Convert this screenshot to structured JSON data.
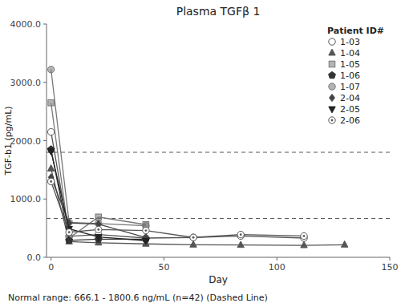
{
  "chart_data": {
    "type": "line",
    "title": "Plasma TGFβ 1",
    "x_label": "Day",
    "y_label": "TGF-b1 (pg/mL)",
    "footnote": "Normal range: 666.1 - 1800.6 ng/mL (n=42) (Dashed Line)",
    "xlim": [
      -2,
      150
    ],
    "ylim": [
      0.0,
      4000.0
    ],
    "xticks": [
      0,
      50,
      100,
      150
    ],
    "yticks": [
      {
        "value": 0.0,
        "label": "0.0"
      },
      {
        "value": 1000.0,
        "label": "1000.0"
      },
      {
        "value": 2000.0,
        "label": "2000.0"
      },
      {
        "value": 3000.0,
        "label": "3000.0"
      },
      {
        "value": 4000.0,
        "label": "4000.0"
      }
    ],
    "reference_lines": [
      666.1,
      1800.6
    ],
    "grid": false,
    "legend": "upper right",
    "legend_title": "Patient ID#",
    "series": [
      {
        "name": "1-03",
        "x": [
          0,
          8,
          21,
          42,
          63,
          84,
          112
        ],
        "values": [
          2150,
          360,
          390,
          330,
          340,
          365,
          330
        ],
        "color": "#555555",
        "marker": "circle-open"
      },
      {
        "name": "1-04",
        "x": [
          0,
          8,
          21,
          42,
          63,
          84,
          112,
          130
        ],
        "values": [
          1520,
          270,
          250,
          230,
          215,
          210,
          205,
          215
        ],
        "color": "#555555",
        "marker": "triangle-up"
      },
      {
        "name": "1-05",
        "x": [
          0,
          8,
          21,
          42
        ],
        "values": [
          2650,
          330,
          690,
          560
        ],
        "color": "#777777",
        "marker": "square"
      },
      {
        "name": "1-06",
        "x": [
          0,
          8,
          21,
          42
        ],
        "values": [
          1850,
          290,
          310,
          310
        ],
        "color": "#333333",
        "marker": "pentagon"
      },
      {
        "name": "1-07",
        "x": [
          0,
          8,
          21,
          42
        ],
        "values": [
          3220,
          600,
          580,
          540
        ],
        "color": "#777777",
        "marker": "circle"
      },
      {
        "name": "2-04",
        "x": [
          0,
          8,
          21,
          42
        ],
        "values": [
          1370,
          590,
          570,
          340
        ],
        "color": "#444444",
        "marker": "diamond"
      },
      {
        "name": "2-05",
        "x": [
          0,
          8,
          21,
          42
        ],
        "values": [
          1820,
          490,
          350,
          285
        ],
        "color": "#222222",
        "marker": "triangle-down"
      },
      {
        "name": "2-06",
        "x": [
          0,
          8,
          21,
          42,
          63,
          84,
          112
        ],
        "values": [
          1300,
          430,
          475,
          460,
          340,
          390,
          365
        ],
        "color": "#555555",
        "marker": "circle-dot"
      }
    ]
  }
}
